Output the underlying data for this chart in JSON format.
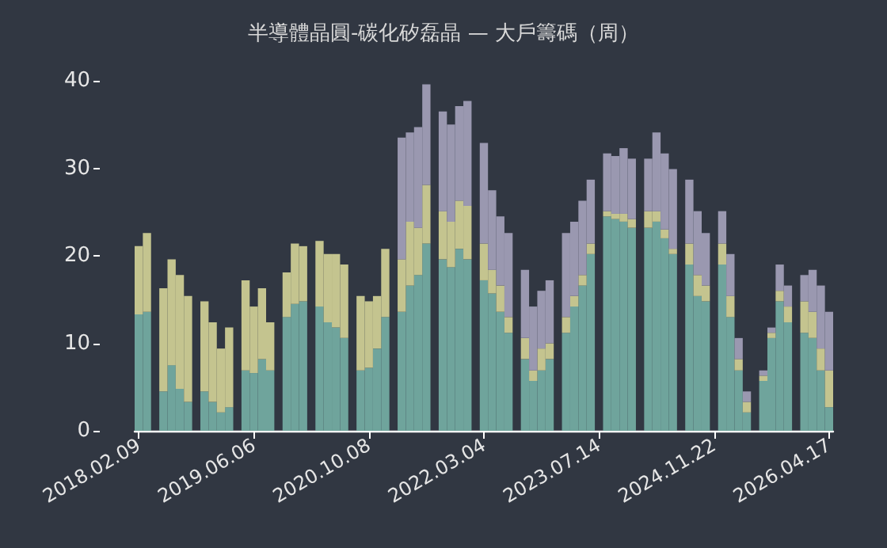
{
  "chart_data": {
    "type": "bar",
    "stacked": true,
    "title": "半導體晶圓-碳化矽磊晶 — 大戶籌碼（周）",
    "categories": [
      "2018.02.09",
      null,
      null,
      null,
      null,
      null,
      null,
      null,
      null,
      null,
      null,
      null,
      null,
      null,
      "2019.06.06",
      null,
      null,
      null,
      null,
      null,
      null,
      null,
      null,
      null,
      null,
      null,
      null,
      null,
      "2020.10.08",
      null,
      null,
      null,
      null,
      null,
      null,
      null,
      null,
      null,
      null,
      null,
      null,
      null,
      "2022.03.04",
      null,
      null,
      null,
      null,
      null,
      null,
      null,
      null,
      null,
      null,
      null,
      null,
      null,
      "2023.07.14",
      null,
      null,
      null,
      null,
      null,
      null,
      null,
      null,
      null,
      null,
      null,
      null,
      null,
      "2024.11.22",
      null,
      null,
      null,
      null,
      null,
      null,
      null,
      null,
      null,
      null,
      null,
      null,
      null,
      "2026.04.17"
    ],
    "series": [
      {
        "color": "#6fa49c",
        "values": [
          13.3,
          13.6,
          null,
          4.5,
          7.5,
          4.8,
          3.3,
          null,
          4.5,
          3.3,
          2.1,
          2.7,
          null,
          6.9,
          6.6,
          8.2,
          6.9,
          null,
          13,
          14.5,
          14.8,
          null,
          14.2,
          12.4,
          11.8,
          10.6,
          null,
          6.9,
          7.2,
          9.4,
          13,
          null,
          13.6,
          16.6,
          17.8,
          21.4,
          null,
          19.6,
          18.7,
          20.8,
          19.6,
          null,
          17.2,
          15.7,
          13.6,
          11.2,
          null,
          8.2,
          5.7,
          6.9,
          8.2,
          null,
          11.2,
          14.2,
          16.6,
          20.2,
          null,
          24.5,
          24.2,
          23.9,
          23.2,
          null,
          23.2,
          23.9,
          22,
          20.2,
          null,
          19,
          15.4,
          14.8,
          null,
          19,
          13,
          6.9,
          2.1,
          null,
          5.7,
          10.6,
          14.8,
          12.4,
          null,
          11.2,
          10.6,
          6.9,
          2.7
        ]
      },
      {
        "color": "#c4c48f",
        "values": [
          7.8,
          9,
          null,
          11.8,
          12.1,
          13,
          12.1,
          null,
          10.3,
          9.1,
          7.3,
          9.1,
          null,
          10.3,
          7.6,
          8.1,
          5.5,
          null,
          5.1,
          6.9,
          6.3,
          null,
          7.5,
          7.8,
          8.4,
          8.4,
          null,
          8.5,
          7.6,
          6,
          7.8,
          null,
          6,
          7.3,
          5.4,
          6.7,
          null,
          5.5,
          5.2,
          5.5,
          6.1,
          null,
          4.2,
          2.7,
          3,
          1.8,
          null,
          2.4,
          1.2,
          2.5,
          1.8,
          null,
          1.8,
          1.2,
          1.2,
          1.2,
          null,
          0.6,
          0.6,
          0.9,
          1,
          null,
          1.9,
          1.2,
          1,
          0.6,
          null,
          2.4,
          2.4,
          1.8,
          null,
          2.4,
          2.4,
          1.3,
          1.2,
          null,
          0.6,
          0.6,
          1.2,
          1.8,
          null,
          3.6,
          3,
          2.5,
          4.2
        ]
      },
      {
        "color": "#9a98b0",
        "values": [
          0,
          0,
          null,
          0,
          0,
          0,
          0,
          null,
          0,
          0,
          0,
          0,
          null,
          0,
          0,
          0,
          0,
          null,
          0,
          0,
          0,
          null,
          0,
          0,
          0,
          0,
          null,
          0,
          0,
          0,
          0,
          null,
          13.9,
          10.2,
          11.5,
          11.5,
          null,
          11.4,
          11.1,
          10.8,
          12,
          null,
          11.5,
          9.1,
          7.9,
          9.6,
          null,
          7.8,
          7.3,
          6.6,
          7.2,
          null,
          9.6,
          8.5,
          8.5,
          7.3,
          null,
          6.6,
          6.6,
          7.5,
          6.9,
          null,
          6,
          9,
          8.7,
          9.1,
          null,
          7.3,
          7.3,
          6,
          null,
          3.7,
          4.8,
          2.4,
          1.2,
          null,
          0.6,
          0.6,
          3,
          2.4,
          null,
          3,
          4.8,
          7.2,
          6.7
        ]
      }
    ],
    "ylim": [
      0,
      40
    ],
    "yticks": [
      0,
      10,
      20,
      30,
      40
    ]
  }
}
